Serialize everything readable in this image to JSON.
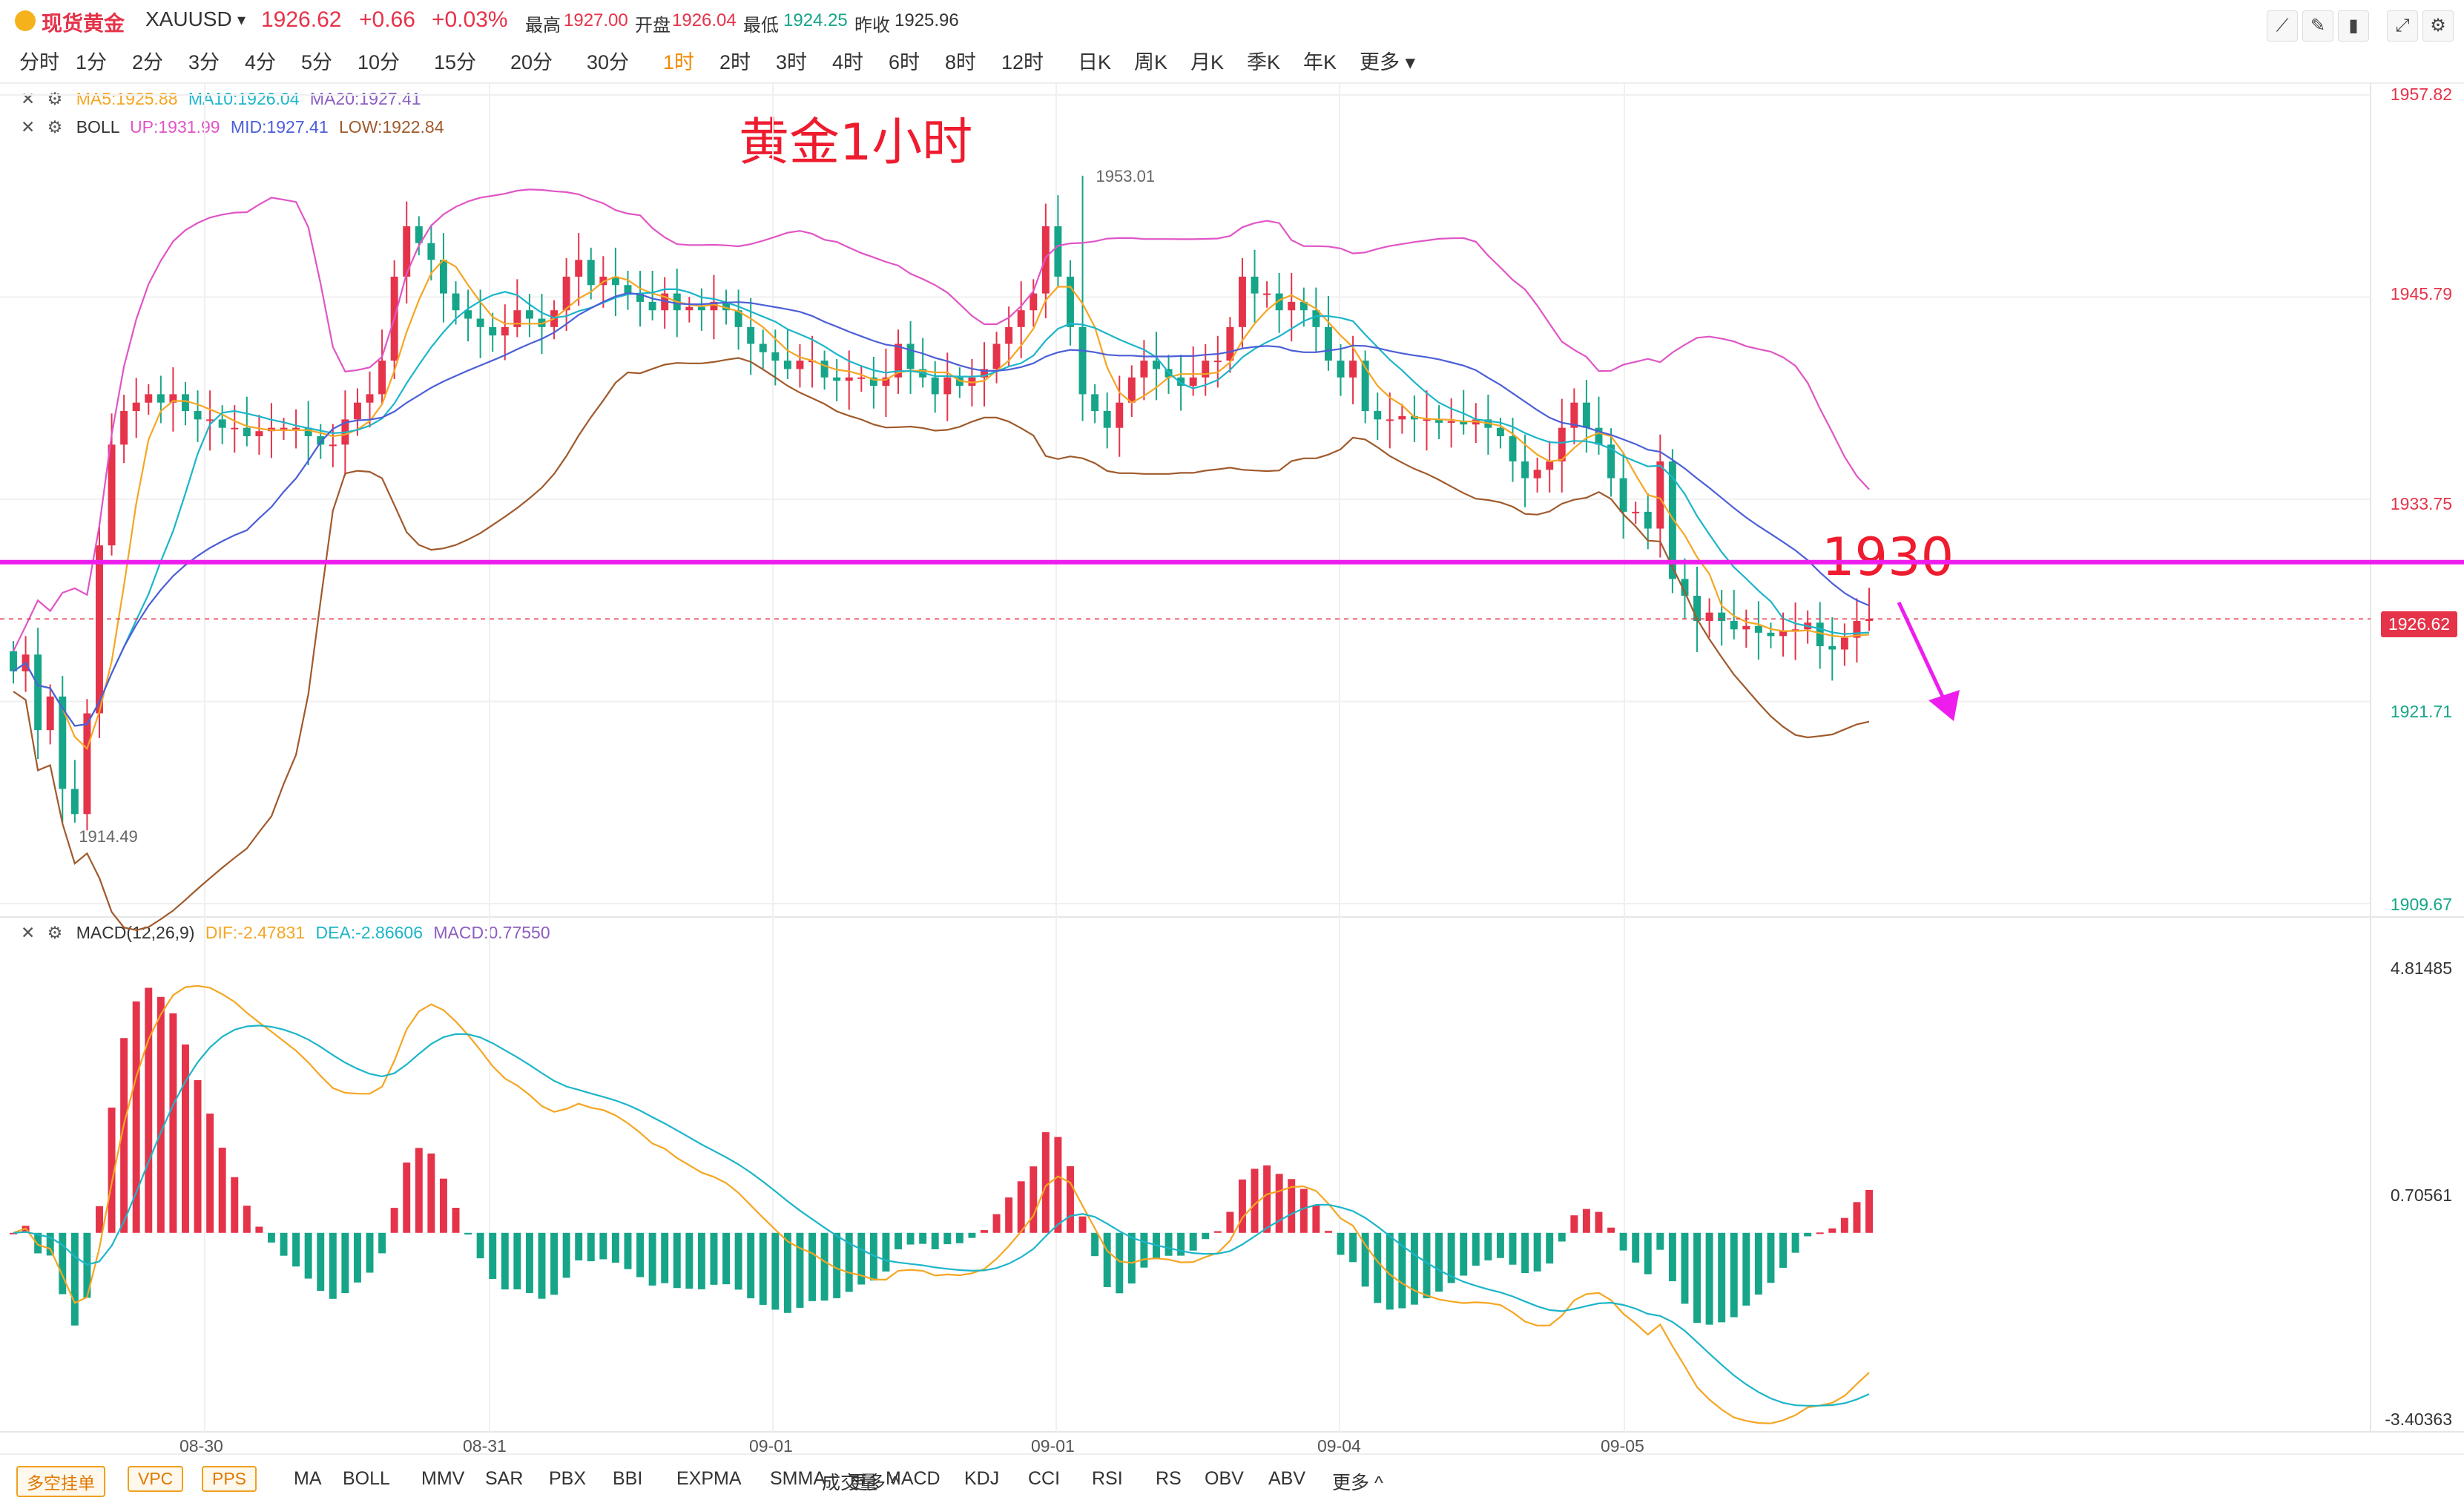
{
  "header": {
    "name": "现货黄金",
    "symbol": "XAUUSD",
    "dropdown": "▾",
    "price": "1926.62",
    "change": "+0.66",
    "change_pct": "+0.03%",
    "high_label": "最高",
    "high": "1927.00",
    "open_label": "开盘",
    "open": "1926.04",
    "low_label": "最低",
    "low": "1924.25",
    "prev_label": "昨收",
    "prev": "1925.96",
    "up_color": "#e5334a",
    "down_color": "#17a589"
  },
  "timeframes": [
    "分时",
    "1分",
    "2分",
    "3分",
    "4分",
    "5分",
    "10分",
    "15分",
    "20分",
    "30分",
    "1时",
    "2时",
    "3时",
    "4时",
    "6时",
    "8时",
    "12时",
    "日K",
    "周K",
    "月K",
    "季K",
    "年K",
    "更多"
  ],
  "active_timeframe": "1时",
  "legend_ma": {
    "ma5": "MA5:1925.88",
    "ma10": "MA10:1926.04",
    "ma20": "MA20:1927.41"
  },
  "legend_boll": {
    "name": "BOLL",
    "up": "UP:1931.99",
    "mid": "MID:1927.41",
    "low": "LOW:1922.84"
  },
  "legend_macd": {
    "name": "MACD(12,26,9)",
    "dif": "DIF:-2.47831",
    "dea": "DEA:-2.86606",
    "macd": "MACD:0.77550"
  },
  "annotation_title": "黄金1小时",
  "annotation_level": "1930",
  "price_axis": [
    "1957.82",
    "1945.79",
    "1933.75",
    "1921.71",
    "1909.67"
  ],
  "current_price_tag": "1926.62",
  "macd_axis": [
    "4.81485",
    "0.70561",
    "-3.40363"
  ],
  "date_labels": [
    "08-30",
    "08-31",
    "09-01",
    "09-01",
    "09-04",
    "09-05"
  ],
  "bottom_buttons": [
    "多空挂单",
    "VPC",
    "PPS"
  ],
  "bottom_main_indicators": [
    "MA",
    "BOLL",
    "MMV",
    "SAR",
    "PBX",
    "BBI",
    "EXPMA",
    "SMMA",
    "更多 ^"
  ],
  "bottom_sub_indicators": [
    "成交量",
    "MACD",
    "KDJ",
    "CCI",
    "RSI",
    "RS",
    "OBV",
    "ABV",
    "更多 ^"
  ],
  "chart_data": {
    "type": "candlestick",
    "timeframe": "1时",
    "ylim": [
      1909.67,
      1957.82
    ],
    "max_marker": "1953.01",
    "min_marker": "1914.49",
    "horizontal_level": 1930,
    "closes": [
      1923.5,
      1924.5,
      1920,
      1922,
      1916.5,
      1915,
      1921,
      1931,
      1937,
      1939,
      1939.5,
      1940,
      1939.5,
      1940,
      1939,
      1938.5,
      1938.5,
      1938,
      1938,
      1937.5,
      1937.8,
      1938,
      1938,
      1938,
      1937.5,
      1937,
      1937,
      1938.5,
      1939.5,
      1940,
      1942,
      1947,
      1950,
      1949,
      1948,
      1946,
      1945,
      1944.5,
      1944,
      1943.5,
      1944,
      1945,
      1944.5,
      1944,
      1945,
      1947,
      1948,
      1946.5,
      1947,
      1946.5,
      1946,
      1945.5,
      1945,
      1946,
      1945,
      1945.2,
      1945,
      1945.5,
      1945,
      1944,
      1943,
      1942.5,
      1942,
      1941.5,
      1942,
      1942,
      1941,
      1940.8,
      1941,
      1941,
      1940.5,
      1941,
      1943,
      1941.5,
      1941,
      1940,
      1941,
      1940.5,
      1941,
      1941.5,
      1943,
      1944,
      1945,
      1946,
      1950,
      1947,
      1944,
      1940,
      1939,
      1938,
      1939.5,
      1941,
      1942,
      1941.5,
      1941,
      1940.5,
      1941,
      1942,
      1942,
      1944,
      1947,
      1946,
      1946,
      1945,
      1945.5,
      1945,
      1944,
      1942,
      1941,
      1942,
      1939,
      1938.5,
      1938.5,
      1938.7,
      1938.5,
      1938.5,
      1938.3,
      1938.4,
      1938.2,
      1938.5,
      1938,
      1937.5,
      1936,
      1935,
      1935.5,
      1936,
      1938,
      1939.5,
      1938,
      1937,
      1935,
      1933,
      1933,
      1932,
      1936,
      1929,
      1928,
      1926.5,
      1927,
      1926.5,
      1926,
      1926.2,
      1925.8,
      1925.6,
      1925.9,
      1926,
      1926.4,
      1925,
      1924.8,
      1925.5,
      1926.5,
      1926.62
    ],
    "macd_ylim": [
      -3.40363,
      4.81485
    ]
  }
}
